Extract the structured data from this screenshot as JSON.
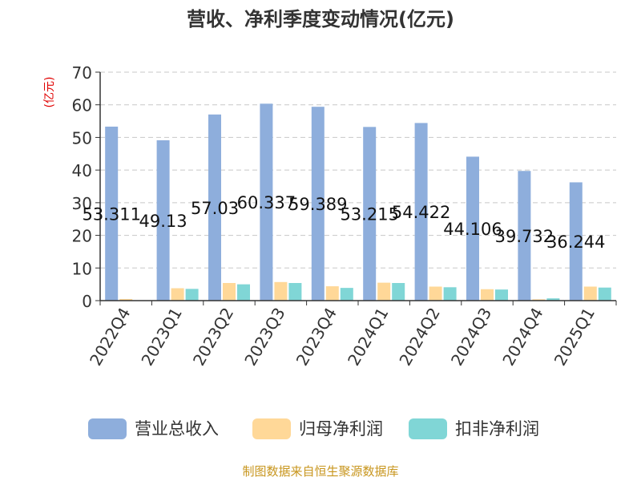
{
  "footer": "制图数据来自恒生聚源数据库",
  "chart_data": {
    "type": "bar",
    "title": "营收、净利季度变动情况(亿元)",
    "ylabel": "(亿元)",
    "ylim": [
      0,
      70
    ],
    "yticks": [
      0,
      10,
      20,
      30,
      40,
      50,
      60,
      70
    ],
    "grid": true,
    "legend_position": "bottom",
    "categories": [
      "2022Q4",
      "2023Q1",
      "2023Q2",
      "2023Q3",
      "2023Q4",
      "2024Q1",
      "2024Q2",
      "2024Q3",
      "2024Q4",
      "2025Q1"
    ],
    "series": [
      {
        "name": "营业总收入",
        "color": "#8eaedc",
        "values": [
          53.311,
          49.13,
          57.03,
          60.337,
          59.389,
          53.215,
          54.422,
          44.106,
          39.732,
          36.244
        ],
        "labels": [
          "53.311",
          "49.13",
          "57.03",
          "60.337",
          "59.389",
          "53.215",
          "54.422",
          "44.106",
          "39.732",
          "36.244"
        ]
      },
      {
        "name": "归母净利润",
        "color": "#ffd898",
        "values": [
          0.5,
          3.8,
          5.4,
          5.7,
          4.4,
          5.5,
          4.3,
          3.5,
          0.4,
          4.3
        ]
      },
      {
        "name": "扣非净利润",
        "color": "#80d6d6",
        "values": [
          0.1,
          3.6,
          5.0,
          5.4,
          3.9,
          5.4,
          4.1,
          3.4,
          0.7,
          4.0
        ]
      }
    ]
  }
}
